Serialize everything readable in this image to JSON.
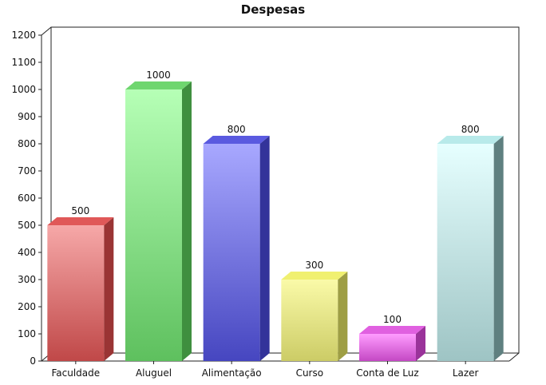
{
  "chart_data": {
    "type": "bar",
    "title": "Despesas",
    "xlabel": "",
    "ylabel": "",
    "categories": [
      "Faculdade",
      "Aluguel",
      "Alimentação",
      "Curso",
      "Conta de Luz",
      "Lazer"
    ],
    "values": [
      500,
      1000,
      800,
      300,
      100,
      800
    ],
    "data_labels": [
      "500",
      "1000",
      "800",
      "300",
      "100",
      "800"
    ],
    "ylim": [
      0,
      1200
    ],
    "yticks": [
      "0",
      "100",
      "200",
      "300",
      "400",
      "500",
      "600",
      "700",
      "800",
      "900",
      "1000",
      "1100",
      "1200"
    ],
    "grid": false,
    "legend": "none",
    "style": "3d-bar",
    "colors": [
      {
        "top": "#e05858",
        "light": "#f6a8a8",
        "dark": "#c04848",
        "side": "#9a3434"
      },
      {
        "top": "#6fd66f",
        "light": "#b6ffb6",
        "dark": "#5ec05e",
        "side": "#3f8f3f"
      },
      {
        "top": "#5a5ae0",
        "light": "#a8a8ff",
        "dark": "#4646c0",
        "side": "#33339a"
      },
      {
        "top": "#f0f070",
        "light": "#fafaa8",
        "dark": "#cccc66",
        "side": "#9e9e44"
      },
      {
        "top": "#e060e0",
        "light": "#ff9cff",
        "dark": "#c448c4",
        "side": "#9a339a"
      },
      {
        "top": "#b8eaea",
        "light": "#e6ffff",
        "dark": "#9ec4c4",
        "side": "#5f8080"
      }
    ]
  }
}
